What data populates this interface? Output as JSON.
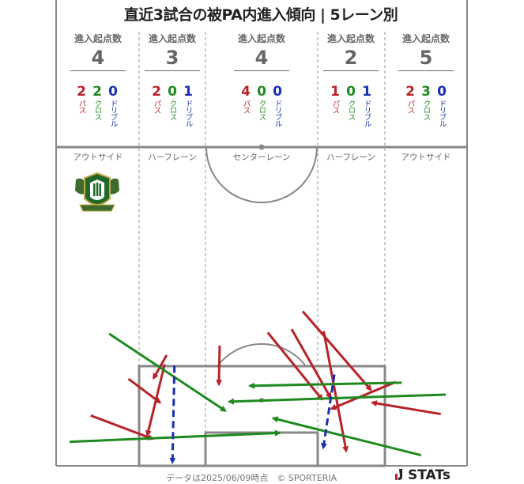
{
  "title": "直近3試合の被PA内進入傾向 | 5レーン別",
  "labels": {
    "entries": "進入起点数",
    "pass": "パス",
    "cross": "クロス",
    "dribble": "ドリブル"
  },
  "lanes": [
    {
      "name": "アウトサイド",
      "total": "4",
      "pass": "2",
      "cross": "2",
      "dribble": "0"
    },
    {
      "name": "ハーフレーン",
      "total": "3",
      "pass": "2",
      "cross": "0",
      "dribble": "1"
    },
    {
      "name": "センターレーン",
      "total": "4",
      "pass": "4",
      "cross": "0",
      "dribble": "0"
    },
    {
      "name": "ハーフレーン",
      "total": "2",
      "pass": "1",
      "cross": "0",
      "dribble": "1"
    },
    {
      "name": "アウトサイド",
      "total": "5",
      "pass": "2",
      "cross": "3",
      "dribble": "0"
    }
  ],
  "footer": "データは2025/06/09時点　© SPORTERIA",
  "brand": "STATs",
  "colors": {
    "pass": "#b8232a",
    "cross": "#1e8a1e",
    "dribble": "#1a2fb0",
    "line": "#888888"
  },
  "chart_data": {
    "type": "arrow-map",
    "coordinate_note": "x = 0 (left touchline) to 100 (right touchline); y = 0 (near attacking top) to 100 (goal line)",
    "arrows": [
      {
        "type": "pass",
        "from": [
          39.8,
          35.2
        ],
        "to": [
          39.6,
          59.7
        ]
      },
      {
        "type": "pass",
        "from": [
          26.9,
          41.2
        ],
        "to": [
          23.7,
          55.8
        ]
      },
      {
        "type": "pass",
        "from": [
          26.4,
          47.0
        ],
        "to": [
          22.2,
          91.5
        ]
      },
      {
        "type": "pass",
        "from": [
          17.6,
          56.1
        ],
        "to": [
          25.3,
          71.0
        ]
      },
      {
        "type": "pass",
        "from": [
          8.4,
          79.1
        ],
        "to": [
          23.5,
          93.8
        ]
      },
      {
        "type": "pass",
        "from": [
          60.0,
          13.7
        ],
        "to": [
          76.6,
          63.1
        ]
      },
      {
        "type": "pass",
        "from": [
          57.3,
          24.9
        ],
        "to": [
          66.8,
          68.0
        ]
      },
      {
        "type": "pass",
        "from": [
          51.5,
          27.0
        ],
        "to": [
          64.7,
          69.0
        ]
      },
      {
        "type": "pass",
        "from": [
          65.1,
          26.2
        ],
        "to": [
          70.6,
          101.5
        ]
      },
      {
        "type": "pass",
        "from": [
          82.6,
          58.1
        ],
        "to": [
          67.0,
          74.9
        ]
      },
      {
        "type": "pass",
        "from": [
          93.6,
          78.2
        ],
        "to": [
          76.9,
          71.0
        ]
      },
      {
        "type": "cross",
        "from": [
          12.9,
          27.8
        ],
        "to": [
          41.2,
          76.2
        ]
      },
      {
        "type": "cross",
        "from": [
          3.3,
          95.6
        ],
        "to": [
          54.4,
          90.0
        ]
      },
      {
        "type": "cross",
        "from": [
          84.1,
          58.5
        ],
        "to": [
          47.1,
          60.5
        ]
      },
      {
        "type": "cross",
        "from": [
          94.8,
          66.0
        ],
        "to": [
          42.1,
          70.4
        ]
      },
      {
        "type": "cross",
        "from": [
          88.8,
          104.0
        ],
        "to": [
          52.8,
          80.8
        ]
      },
      {
        "type": "dribble",
        "from": [
          28.8,
          47.8
        ],
        "to": [
          28.3,
          108.6
        ]
      },
      {
        "type": "dribble",
        "from": [
          67.7,
          53.4
        ],
        "to": [
          65.0,
          99.5
        ]
      }
    ]
  }
}
